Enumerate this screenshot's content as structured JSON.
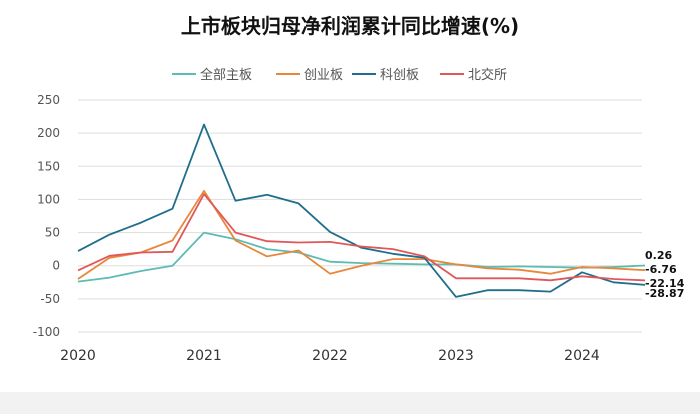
{
  "chart_data": {
    "type": "line",
    "title": "上市板块归母净利润累计同比增速(%)",
    "xlabel": "",
    "ylabel": "",
    "ylim": [
      -100,
      250
    ],
    "yticks": [
      -100,
      -50,
      0,
      50,
      100,
      150,
      200,
      250
    ],
    "xticks": [
      "2020",
      "2021",
      "2022",
      "2023",
      "2024"
    ],
    "grid": true,
    "legend_position": "top",
    "x": [
      "2020Q1",
      "2020Q2",
      "2020Q3",
      "2020Q4",
      "2021Q1",
      "2021Q2",
      "2021Q3",
      "2021Q4",
      "2022Q1",
      "2022Q2",
      "2022Q3",
      "2022Q4",
      "2023Q1",
      "2023Q2",
      "2023Q3",
      "2023Q4",
      "2024Q1",
      "2024Q2",
      "2024Q3"
    ],
    "series": [
      {
        "name": "全部主板",
        "color": "#5bbcb3",
        "values": [
          -24,
          -18,
          -8,
          0,
          50,
          40,
          25,
          20,
          6,
          4,
          3,
          2,
          2,
          -2,
          -1,
          -2,
          -3,
          -2,
          0.26
        ]
      },
      {
        "name": "创业板",
        "color": "#e8873a",
        "values": [
          -20,
          12,
          20,
          38,
          113,
          38,
          14,
          23,
          -12,
          0,
          10,
          10,
          2,
          -4,
          -6,
          -12,
          -2,
          -4,
          -6.76
        ]
      },
      {
        "name": "科创板",
        "color": "#1f6e8c",
        "values": [
          22,
          47,
          65,
          86,
          213,
          98,
          107,
          94,
          51,
          27,
          18,
          12,
          -47,
          -37,
          -37,
          -39,
          -10,
          -25,
          -28.87
        ]
      },
      {
        "name": "北交所",
        "color": "#e15759",
        "values": [
          -7,
          15,
          20,
          21,
          108,
          50,
          37,
          35,
          36,
          29,
          25,
          14,
          -19,
          -19,
          -19,
          -22,
          -16,
          -20,
          -22.14
        ]
      }
    ],
    "end_labels": [
      "0.26",
      "-6.76",
      "-22.14",
      "-28.87"
    ]
  }
}
